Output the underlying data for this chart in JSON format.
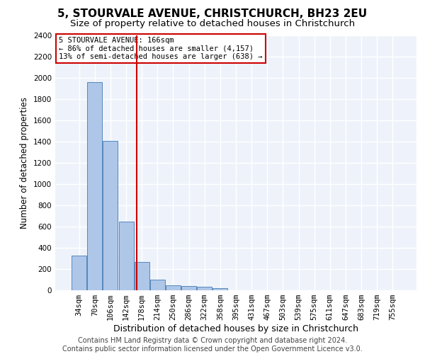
{
  "title": "5, STOURVALE AVENUE, CHRISTCHURCH, BH23 2EU",
  "subtitle": "Size of property relative to detached houses in Christchurch",
  "xlabel": "Distribution of detached houses by size in Christchurch",
  "ylabel": "Number of detached properties",
  "categories": [
    "34sqm",
    "70sqm",
    "106sqm",
    "142sqm",
    "178sqm",
    "214sqm",
    "250sqm",
    "286sqm",
    "322sqm",
    "358sqm",
    "395sqm",
    "431sqm",
    "467sqm",
    "503sqm",
    "539sqm",
    "575sqm",
    "611sqm",
    "647sqm",
    "683sqm",
    "719sqm",
    "755sqm"
  ],
  "values": [
    325,
    1960,
    1405,
    650,
    270,
    100,
    45,
    38,
    35,
    20,
    0,
    0,
    0,
    0,
    0,
    0,
    0,
    0,
    0,
    0,
    0
  ],
  "bar_color": "#aec6e8",
  "bar_edge_color": "#5588bb",
  "property_line_x": 3.67,
  "annotation_title": "5 STOURVALE AVENUE: 166sqm",
  "annotation_line1": "← 86% of detached houses are smaller (4,157)",
  "annotation_line2": "13% of semi-detached houses are larger (638) →",
  "annotation_box_color": "#ffffff",
  "annotation_border_color": "#cc0000",
  "vline_color": "#cc0000",
  "ylim": [
    0,
    2400
  ],
  "yticks": [
    0,
    200,
    400,
    600,
    800,
    1000,
    1200,
    1400,
    1600,
    1800,
    2000,
    2200,
    2400
  ],
  "bg_color": "#eef3fb",
  "grid_color": "#ffffff",
  "footer_line1": "Contains HM Land Registry data © Crown copyright and database right 2024.",
  "footer_line2": "Contains public sector information licensed under the Open Government Licence v3.0.",
  "title_fontsize": 11,
  "subtitle_fontsize": 9.5,
  "xlabel_fontsize": 9,
  "ylabel_fontsize": 8.5,
  "tick_fontsize": 7.5,
  "footer_fontsize": 7
}
